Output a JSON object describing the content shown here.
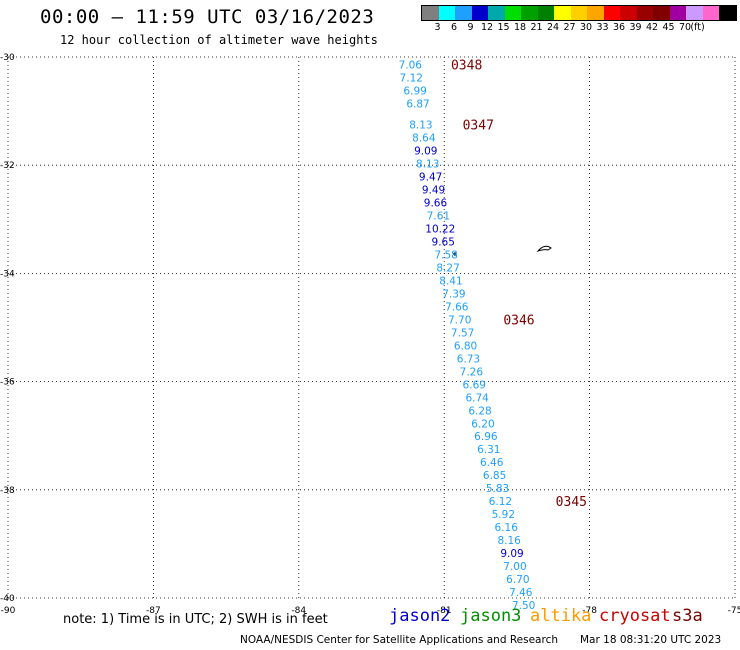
{
  "header": {
    "title": "00:00 – 11:59 UTC 03/16/2023",
    "subtitle": "12 hour collection of altimeter wave heights"
  },
  "colorbar": {
    "colors": [
      "#7f7f7f",
      "#00ffff",
      "#1ea0ff",
      "#0000cc",
      "#00aaaa",
      "#00dd00",
      "#00a000",
      "#008000",
      "#ffff00",
      "#ffd000",
      "#ffa500",
      "#ff0000",
      "#cc0000",
      "#990000",
      "#800000",
      "#a000a0",
      "#cc99ff",
      "#ff66cc",
      "#000000"
    ],
    "labels": [
      "3",
      "6",
      "9",
      "12",
      "15",
      "18",
      "21",
      "24",
      "27",
      "30",
      "33",
      "36",
      "39",
      "42",
      "45",
      "70"
    ],
    "unit": "(ft)"
  },
  "map": {
    "lon_ticks": [
      "-90",
      "-87",
      "-84",
      "-81",
      "-78",
      "-75"
    ],
    "lat_ticks": [
      "-30",
      "-32",
      "-34",
      "-36",
      "-38",
      "-40"
    ]
  },
  "chart_data": {
    "type": "scatter",
    "x_range": [
      -90,
      -75
    ],
    "y_range": [
      -40,
      -30
    ],
    "observations": [
      {
        "lon": -81.7,
        "lat": -30.14,
        "swh": "7.06",
        "color": "#1ea0ff"
      },
      {
        "lon": -81.68,
        "lat": -30.38,
        "swh": "7.12",
        "color": "#1ea0ff"
      },
      {
        "lon": -81.6,
        "lat": -30.62,
        "swh": "6.99",
        "color": "#1ea0ff"
      },
      {
        "lon": -81.54,
        "lat": -30.86,
        "swh": "6.87",
        "color": "#1ea0ff"
      },
      {
        "lon": -81.48,
        "lat": -31.25,
        "swh": "8.13",
        "color": "#1ea0ff"
      },
      {
        "lon": -81.42,
        "lat": -31.49,
        "swh": "8.64",
        "color": "#1ea0ff"
      },
      {
        "lon": -81.38,
        "lat": -31.73,
        "swh": "9.09",
        "color": "#0000cc"
      },
      {
        "lon": -81.34,
        "lat": -31.97,
        "swh": "8.13",
        "color": "#1ea0ff"
      },
      {
        "lon": -81.28,
        "lat": -32.21,
        "swh": "9.47",
        "color": "#0000cc"
      },
      {
        "lon": -81.22,
        "lat": -32.45,
        "swh": "9.49",
        "color": "#0000cc"
      },
      {
        "lon": -81.18,
        "lat": -32.69,
        "swh": "9.66",
        "color": "#0000cc"
      },
      {
        "lon": -81.12,
        "lat": -32.93,
        "swh": "7.61",
        "color": "#1ea0ff"
      },
      {
        "lon": -81.08,
        "lat": -33.17,
        "swh": "10.22",
        "color": "#0000cc"
      },
      {
        "lon": -81.02,
        "lat": -33.41,
        "swh": "9.65",
        "color": "#0000cc"
      },
      {
        "lon": -80.96,
        "lat": -33.65,
        "swh": "7.58",
        "color": "#1ea0ff"
      },
      {
        "lon": -80.92,
        "lat": -33.89,
        "swh": "8.27",
        "color": "#1ea0ff"
      },
      {
        "lon": -80.86,
        "lat": -34.13,
        "swh": "8.41",
        "color": "#1ea0ff"
      },
      {
        "lon": -80.8,
        "lat": -34.37,
        "swh": "7.39",
        "color": "#1ea0ff"
      },
      {
        "lon": -80.74,
        "lat": -34.61,
        "swh": "7.66",
        "color": "#1ea0ff"
      },
      {
        "lon": -80.68,
        "lat": -34.85,
        "swh": "7.70",
        "color": "#1ea0ff"
      },
      {
        "lon": -80.62,
        "lat": -35.09,
        "swh": "7.57",
        "color": "#1ea0ff"
      },
      {
        "lon": -80.56,
        "lat": -35.33,
        "swh": "6.80",
        "color": "#1ea0ff"
      },
      {
        "lon": -80.5,
        "lat": -35.57,
        "swh": "6.73",
        "color": "#1ea0ff"
      },
      {
        "lon": -80.44,
        "lat": -35.81,
        "swh": "7.26",
        "color": "#1ea0ff"
      },
      {
        "lon": -80.38,
        "lat": -36.05,
        "swh": "6.69",
        "color": "#1ea0ff"
      },
      {
        "lon": -80.32,
        "lat": -36.29,
        "swh": "6.74",
        "color": "#1ea0ff"
      },
      {
        "lon": -80.26,
        "lat": -36.53,
        "swh": "6.28",
        "color": "#1ea0ff"
      },
      {
        "lon": -80.2,
        "lat": -36.77,
        "swh": "6.20",
        "color": "#1ea0ff"
      },
      {
        "lon": -80.14,
        "lat": -37.01,
        "swh": "6.96",
        "color": "#1ea0ff"
      },
      {
        "lon": -80.08,
        "lat": -37.25,
        "swh": "6.31",
        "color": "#1ea0ff"
      },
      {
        "lon": -80.02,
        "lat": -37.49,
        "swh": "6.46",
        "color": "#1ea0ff"
      },
      {
        "lon": -79.96,
        "lat": -37.73,
        "swh": "6.85",
        "color": "#1ea0ff"
      },
      {
        "lon": -79.9,
        "lat": -37.97,
        "swh": "5.83",
        "color": "#1ea0ff"
      },
      {
        "lon": -79.84,
        "lat": -38.21,
        "swh": "6.12",
        "color": "#1ea0ff"
      },
      {
        "lon": -79.78,
        "lat": -38.45,
        "swh": "5.92",
        "color": "#1ea0ff"
      },
      {
        "lon": -79.72,
        "lat": -38.69,
        "swh": "6.16",
        "color": "#1ea0ff"
      },
      {
        "lon": -79.66,
        "lat": -38.93,
        "swh": "8.16",
        "color": "#1ea0ff"
      },
      {
        "lon": -79.6,
        "lat": -39.17,
        "swh": "9.09",
        "color": "#0000cc"
      },
      {
        "lon": -79.54,
        "lat": -39.41,
        "swh": "7.00",
        "color": "#1ea0ff"
      },
      {
        "lon": -79.48,
        "lat": -39.65,
        "swh": "6.70",
        "color": "#1ea0ff"
      },
      {
        "lon": -79.42,
        "lat": -39.89,
        "swh": "7.46",
        "color": "#1ea0ff"
      },
      {
        "lon": -79.36,
        "lat": -40.13,
        "swh": "7.50",
        "color": "#1ea0ff"
      }
    ],
    "pass_times": [
      {
        "label": "0348",
        "lon": -80.86,
        "lat": -30.14
      },
      {
        "label": "0347",
        "lon": -80.62,
        "lat": -31.25
      },
      {
        "label": "0346",
        "lon": -79.78,
        "lat": -34.85
      },
      {
        "label": "0345",
        "lon": -78.7,
        "lat": -38.21
      }
    ]
  },
  "footer": {
    "note": "note: 1) Time is in UTC; 2) SWH is in feet",
    "satellites": [
      {
        "name": "jason2",
        "color": "#0000cc"
      },
      {
        "name": "jason3",
        "color": "#009000"
      },
      {
        "name": "altika",
        "color": "#ff9900"
      },
      {
        "name": "cryosat",
        "color": "#cc0000"
      },
      {
        "name": "s3a",
        "color": "#7a0000"
      }
    ],
    "credit": "NOAA/NESDIS Center for Satellite Applications and Research",
    "timestamp": "Mar 18 08:31:20 UTC 2023"
  }
}
